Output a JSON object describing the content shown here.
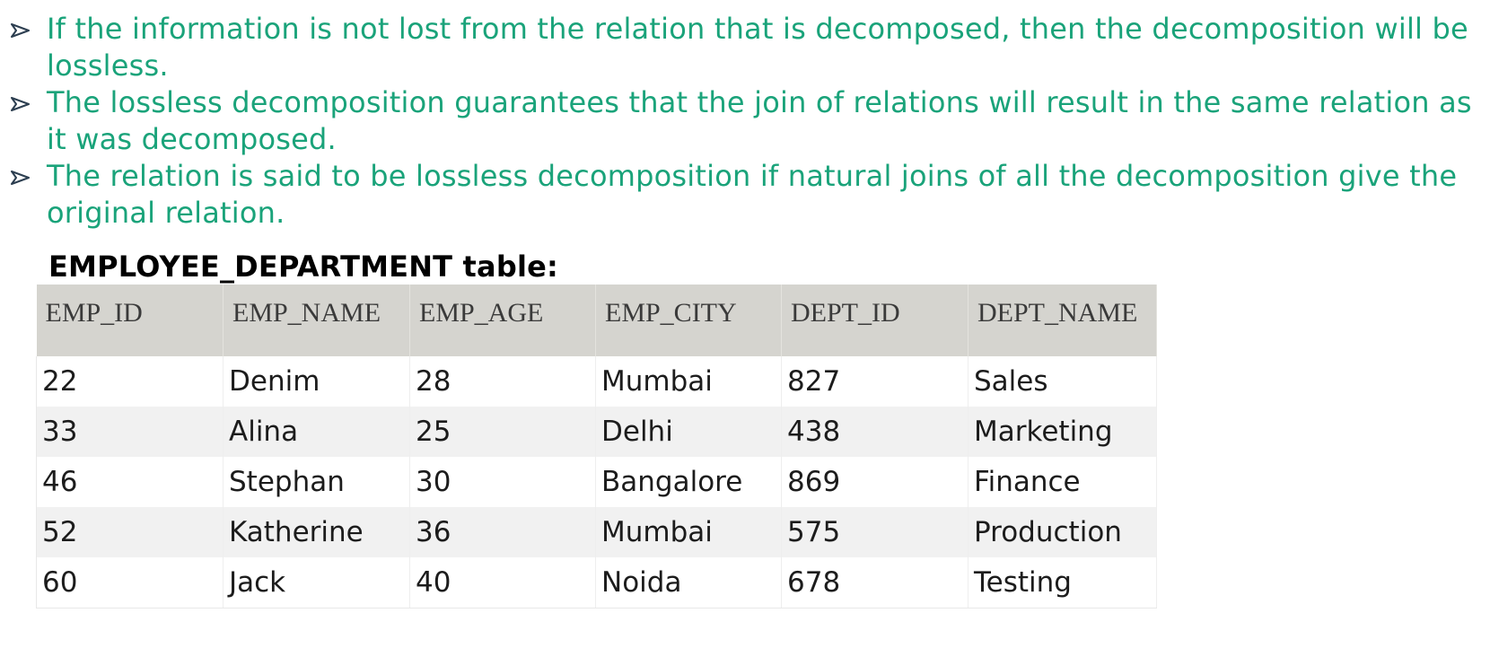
{
  "bullets": [
    "If the information is not lost from the relation that is decomposed, then the decomposition will be lossless.",
    "The lossless decomposition guarantees that the join of relations will result in the same relation as it was decomposed.",
    "The relation is said to be lossless decomposition if natural joins of all the decomposition give the original relation."
  ],
  "bullet_icon": "arrow-bullet-icon",
  "table_title": "EMPLOYEE_DEPARTMENT table:",
  "table": {
    "headers": [
      "EMP_ID",
      "EMP_NAME",
      "EMP_AGE",
      "EMP_CITY",
      "DEPT_ID",
      "DEPT_NAME"
    ],
    "rows": [
      [
        "22",
        "Denim",
        "28",
        "Mumbai",
        "827",
        "Sales"
      ],
      [
        "33",
        "Alina",
        "25",
        "Delhi",
        "438",
        "Marketing"
      ],
      [
        "46",
        "Stephan",
        "30",
        "Bangalore",
        "869",
        "Finance"
      ],
      [
        "52",
        "Katherine",
        "36",
        "Mumbai",
        "575",
        "Production"
      ],
      [
        "60",
        "Jack",
        "40",
        "Noida",
        "678",
        "Testing"
      ]
    ]
  },
  "colors": {
    "bullet_text": "#1aa37a",
    "header_bg": "#d5d4cf",
    "alt_row_bg": "#f1f1f1"
  }
}
